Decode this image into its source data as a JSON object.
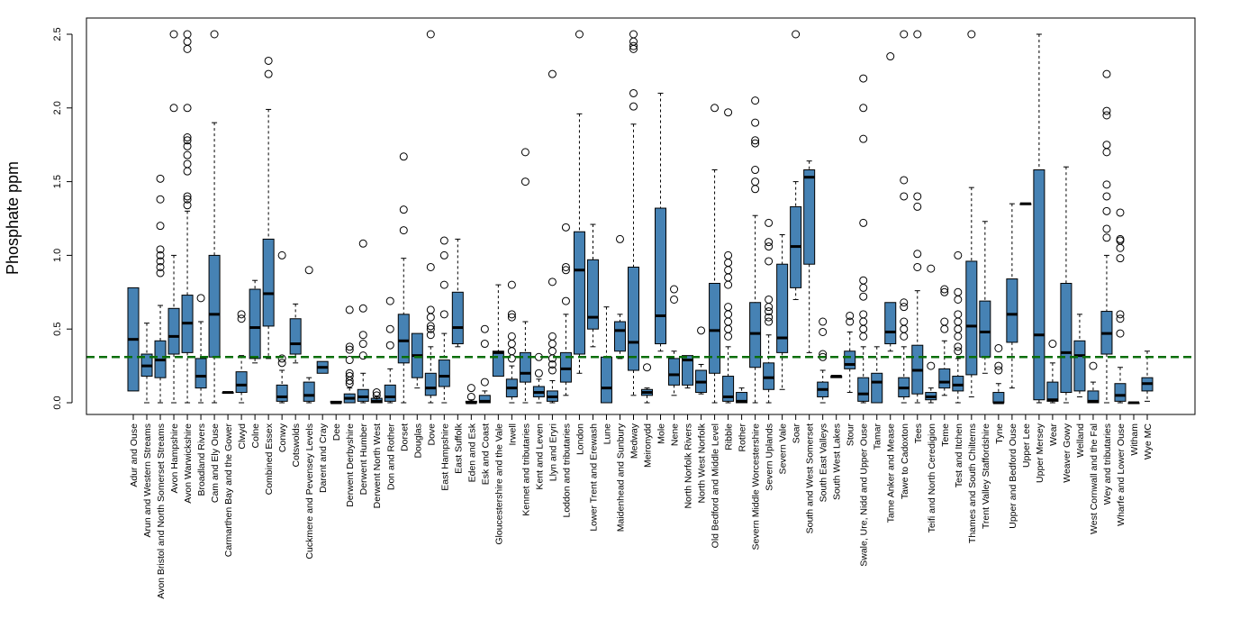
{
  "chart_data": {
    "type": "box",
    "title": "",
    "xlabel": "",
    "ylabel": "Phosphate ppm",
    "ylim": [
      -0.1,
      2.6
    ],
    "yticks": [
      0.0,
      0.5,
      1.0,
      1.5,
      2.0,
      2.5
    ],
    "ytick_labels": [
      "0.0",
      "0.5",
      "1.0",
      "1.5",
      "2.0",
      "2.5"
    ],
    "reference_line": {
      "y": 0.31,
      "color": "#0a6e0a",
      "style": "dashed"
    },
    "box_color": "#4682b4",
    "boxes": [
      {
        "label": "Adur and Ouse",
        "whislo": 0.08,
        "q1": 0.08,
        "med": 0.43,
        "q3": 0.78,
        "whishi": 0.78,
        "fliers": []
      },
      {
        "label": "Arun and Western Streams",
        "whislo": 0.0,
        "q1": 0.18,
        "med": 0.25,
        "q3": 0.33,
        "whishi": 0.54,
        "fliers": []
      },
      {
        "label": "Avon Bristol and North Somerset Streams",
        "whislo": 0.0,
        "q1": 0.17,
        "med": 0.29,
        "q3": 0.42,
        "whishi": 0.66,
        "fliers": [
          0.88,
          0.92,
          0.96,
          1.0,
          1.04,
          1.2,
          1.38,
          1.52
        ]
      },
      {
        "label": "Avon Hampshire",
        "whislo": 0.0,
        "q1": 0.33,
        "med": 0.45,
        "q3": 0.64,
        "whishi": 1.0,
        "fliers": [
          2.0,
          2.5
        ]
      },
      {
        "label": "Avon Warwickshire",
        "whislo": 0.0,
        "q1": 0.34,
        "med": 0.54,
        "q3": 0.73,
        "whishi": 1.3,
        "fliers": [
          1.34,
          1.38,
          1.4,
          1.57,
          1.62,
          1.68,
          1.74,
          1.78,
          1.8,
          2.0,
          2.4,
          2.45,
          2.5
        ]
      },
      {
        "label": "Broadland Rivers",
        "whislo": 0.0,
        "q1": 0.1,
        "med": 0.18,
        "q3": 0.3,
        "whishi": 0.55,
        "fliers": [
          0.71
        ]
      },
      {
        "label": "Cam and Ely Ouse",
        "whislo": 0.0,
        "q1": 0.31,
        "med": 0.6,
        "q3": 1.0,
        "whishi": 1.9,
        "fliers": [
          2.5
        ]
      },
      {
        "label": "Carmarthen Bay and the Gower",
        "whislo": 0.07,
        "q1": 0.07,
        "med": 0.07,
        "q3": 0.07,
        "whishi": 0.07,
        "fliers": []
      },
      {
        "label": "Clwyd",
        "whislo": 0.0,
        "q1": 0.07,
        "med": 0.12,
        "q3": 0.21,
        "whishi": 0.32,
        "fliers": [
          0.57,
          0.6
        ]
      },
      {
        "label": "Colne",
        "whislo": 0.27,
        "q1": 0.3,
        "med": 0.51,
        "q3": 0.77,
        "whishi": 0.83,
        "fliers": []
      },
      {
        "label": "Combined Essex",
        "whislo": 0.3,
        "q1": 0.52,
        "med": 0.74,
        "q3": 1.11,
        "whishi": 1.99,
        "fliers": [
          2.23,
          2.32
        ]
      },
      {
        "label": "Conwy",
        "whislo": 0.0,
        "q1": 0.01,
        "med": 0.04,
        "q3": 0.12,
        "whishi": 0.22,
        "fliers": [
          0.27,
          0.3,
          1.0
        ]
      },
      {
        "label": "Cotswolds",
        "whislo": 0.27,
        "q1": 0.33,
        "med": 0.4,
        "q3": 0.57,
        "whishi": 0.67,
        "fliers": []
      },
      {
        "label": "Cuckmere and Pevensey Levels",
        "whislo": 0.0,
        "q1": 0.01,
        "med": 0.05,
        "q3": 0.14,
        "whishi": 0.17,
        "fliers": [
          0.9
        ]
      },
      {
        "label": "Darent and Cray",
        "whislo": 0.2,
        "q1": 0.2,
        "med": 0.24,
        "q3": 0.28,
        "whishi": 0.28,
        "fliers": []
      },
      {
        "label": "Dee",
        "whislo": 0.0,
        "q1": 0.0,
        "med": 0.0,
        "q3": 0.01,
        "whishi": 0.01,
        "fliers": []
      },
      {
        "label": "Derwent Derbyshire",
        "whislo": 0.0,
        "q1": 0.0,
        "med": 0.03,
        "q3": 0.06,
        "whishi": 0.1,
        "fliers": [
          0.13,
          0.15,
          0.18,
          0.2,
          0.29,
          0.36,
          0.38,
          0.63
        ]
      },
      {
        "label": "Derwent Humber",
        "whislo": 0.0,
        "q1": 0.01,
        "med": 0.04,
        "q3": 0.09,
        "whishi": 0.2,
        "fliers": [
          0.32,
          0.4,
          0.46,
          0.64,
          1.08
        ]
      },
      {
        "label": "Derwent North West",
        "whislo": 0.0,
        "q1": 0.0,
        "med": 0.01,
        "q3": 0.03,
        "whishi": 0.04,
        "fliers": [
          0.05,
          0.07
        ]
      },
      {
        "label": "Don and Rother",
        "whislo": 0.0,
        "q1": 0.01,
        "med": 0.04,
        "q3": 0.12,
        "whishi": 0.23,
        "fliers": [
          0.39,
          0.5,
          0.69
        ]
      },
      {
        "label": "Dorset",
        "whislo": 0.0,
        "q1": 0.27,
        "med": 0.42,
        "q3": 0.6,
        "whishi": 0.98,
        "fliers": [
          1.17,
          1.31,
          1.67
        ]
      },
      {
        "label": "Douglas",
        "whislo": 0.1,
        "q1": 0.17,
        "med": 0.32,
        "q3": 0.47,
        "whishi": 0.47,
        "fliers": []
      },
      {
        "label": "Dove",
        "whislo": 0.0,
        "q1": 0.05,
        "med": 0.1,
        "q3": 0.2,
        "whishi": 0.38,
        "fliers": [
          0.46,
          0.5,
          0.52,
          0.58,
          0.63,
          0.92,
          2.5
        ]
      },
      {
        "label": "East Hampshire",
        "whislo": 0.0,
        "q1": 0.11,
        "med": 0.18,
        "q3": 0.29,
        "whishi": 0.47,
        "fliers": [
          0.6,
          0.8,
          1.0,
          1.1
        ]
      },
      {
        "label": "East Suffolk",
        "whislo": 0.38,
        "q1": 0.4,
        "med": 0.51,
        "q3": 0.75,
        "whishi": 1.11,
        "fliers": []
      },
      {
        "label": "Eden and Esk",
        "whislo": 0.0,
        "q1": 0.0,
        "med": 0.0,
        "q3": 0.01,
        "whishi": 0.02,
        "fliers": [
          0.04,
          0.1
        ]
      },
      {
        "label": "Esk and Coast",
        "whislo": 0.0,
        "q1": 0.0,
        "med": 0.01,
        "q3": 0.05,
        "whishi": 0.08,
        "fliers": [
          0.14,
          0.4,
          0.5
        ]
      },
      {
        "label": "Gloucestershire and the Vale",
        "whislo": 0.18,
        "q1": 0.18,
        "med": 0.34,
        "q3": 0.35,
        "whishi": 0.8,
        "fliers": []
      },
      {
        "label": "Irwell",
        "whislo": 0.0,
        "q1": 0.04,
        "med": 0.1,
        "q3": 0.16,
        "whishi": 0.25,
        "fliers": [
          0.3,
          0.35,
          0.4,
          0.45,
          0.58,
          0.6,
          0.8
        ]
      },
      {
        "label": "Kennet and tributaries",
        "whislo": 0.0,
        "q1": 0.14,
        "med": 0.2,
        "q3": 0.34,
        "whishi": 0.55,
        "fliers": [
          1.5,
          1.7
        ]
      },
      {
        "label": "Kent and Leven",
        "whislo": 0.0,
        "q1": 0.04,
        "med": 0.07,
        "q3": 0.11,
        "whishi": 0.16,
        "fliers": [
          0.2,
          0.31
        ]
      },
      {
        "label": "Llyn and Eryri",
        "whislo": 0.0,
        "q1": 0.01,
        "med": 0.04,
        "q3": 0.08,
        "whishi": 0.15,
        "fliers": [
          0.22,
          0.26,
          0.3,
          0.35,
          0.4,
          0.45,
          0.82,
          2.23
        ]
      },
      {
        "label": "Loddon and tributaries",
        "whislo": 0.05,
        "q1": 0.14,
        "med": 0.23,
        "q3": 0.34,
        "whishi": 0.6,
        "fliers": [
          0.69,
          0.9,
          0.92,
          1.19
        ]
      },
      {
        "label": "London",
        "whislo": 0.2,
        "q1": 0.33,
        "med": 0.9,
        "q3": 1.16,
        "whishi": 1.96,
        "fliers": [
          2.5
        ]
      },
      {
        "label": "Lower Trent and Erewash",
        "whislo": 0.38,
        "q1": 0.5,
        "med": 0.58,
        "q3": 0.97,
        "whishi": 1.21,
        "fliers": []
      },
      {
        "label": "Lune",
        "whislo": 0.0,
        "q1": 0.0,
        "med": 0.1,
        "q3": 0.31,
        "whishi": 0.65,
        "fliers": []
      },
      {
        "label": "Maidenhead and Sunbury",
        "whislo": 0.3,
        "q1": 0.35,
        "med": 0.49,
        "q3": 0.55,
        "whishi": 0.6,
        "fliers": [
          1.11
        ]
      },
      {
        "label": "Medway",
        "whislo": 0.05,
        "q1": 0.22,
        "med": 0.41,
        "q3": 0.92,
        "whishi": 1.89,
        "fliers": [
          2.01,
          2.1,
          2.4,
          2.42,
          2.45,
          2.5
        ]
      },
      {
        "label": "Meironydd",
        "whislo": 0.0,
        "q1": 0.05,
        "med": 0.07,
        "q3": 0.09,
        "whishi": 0.1,
        "fliers": [
          0.24
        ]
      },
      {
        "label": "Mole",
        "whislo": 0.35,
        "q1": 0.4,
        "med": 0.59,
        "q3": 1.32,
        "whishi": 2.1,
        "fliers": []
      },
      {
        "label": "Nene",
        "whislo": 0.05,
        "q1": 0.12,
        "med": 0.19,
        "q3": 0.3,
        "whishi": 0.35,
        "fliers": [
          0.7,
          0.77
        ]
      },
      {
        "label": "North Norfolk Rivers",
        "whislo": 0.1,
        "q1": 0.12,
        "med": 0.29,
        "q3": 0.32,
        "whishi": 0.32,
        "fliers": []
      },
      {
        "label": "North West Norfolk",
        "whislo": 0.06,
        "q1": 0.07,
        "med": 0.14,
        "q3": 0.22,
        "whishi": 0.26,
        "fliers": [
          0.49
        ]
      },
      {
        "label": "Old Bedford and Middle Level",
        "whislo": 0.0,
        "q1": 0.2,
        "med": 0.49,
        "q3": 0.81,
        "whishi": 1.58,
        "fliers": [
          2.0
        ]
      },
      {
        "label": "Ribble",
        "whislo": 0.0,
        "q1": 0.01,
        "med": 0.04,
        "q3": 0.18,
        "whishi": 0.38,
        "fliers": [
          0.45,
          0.5,
          0.55,
          0.6,
          0.65,
          0.8,
          0.85,
          0.9,
          0.95,
          1.0,
          1.97
        ]
      },
      {
        "label": "Rother",
        "whislo": 0.0,
        "q1": 0.0,
        "med": 0.01,
        "q3": 0.07,
        "whishi": 0.1,
        "fliers": []
      },
      {
        "label": "Severn Middle Worcestershire",
        "whislo": 0.0,
        "q1": 0.24,
        "med": 0.47,
        "q3": 0.68,
        "whishi": 1.27,
        "fliers": [
          1.45,
          1.5,
          1.58,
          1.76,
          1.78,
          1.9,
          2.05
        ]
      },
      {
        "label": "Severn Uplands",
        "whislo": 0.0,
        "q1": 0.09,
        "med": 0.17,
        "q3": 0.27,
        "whishi": 0.46,
        "fliers": [
          0.55,
          0.58,
          0.62,
          0.65,
          0.7,
          0.96,
          1.06,
          1.09,
          1.22
        ]
      },
      {
        "label": "Severn Vale",
        "whislo": 0.09,
        "q1": 0.34,
        "med": 0.44,
        "q3": 0.94,
        "whishi": 1.14,
        "fliers": []
      },
      {
        "label": "Soar",
        "whislo": 0.7,
        "q1": 0.78,
        "med": 1.06,
        "q3": 1.33,
        "whishi": 1.5,
        "fliers": [
          2.5
        ]
      },
      {
        "label": "South and West Somerset",
        "whislo": 0.34,
        "q1": 0.94,
        "med": 1.53,
        "q3": 1.58,
        "whishi": 1.64,
        "fliers": []
      },
      {
        "label": "South East Valleys",
        "whislo": 0.0,
        "q1": 0.04,
        "med": 0.09,
        "q3": 0.14,
        "whishi": 0.22,
        "fliers": [
          0.31,
          0.33,
          0.48,
          0.55
        ]
      },
      {
        "label": "South West Lakes",
        "whislo": 0.17,
        "q1": 0.17,
        "med": 0.18,
        "q3": 0.18,
        "whishi": 0.18,
        "fliers": []
      },
      {
        "label": "Stour",
        "whislo": 0.07,
        "q1": 0.23,
        "med": 0.26,
        "q3": 0.35,
        "whishi": 0.48,
        "fliers": [
          0.55,
          0.59
        ]
      },
      {
        "label": "Swale, Ure, Nidd and Upper Ouse",
        "whislo": 0.0,
        "q1": 0.01,
        "med": 0.06,
        "q3": 0.17,
        "whishi": 0.38,
        "fliers": [
          0.45,
          0.5,
          0.55,
          0.6,
          0.72,
          0.78,
          0.83,
          1.22,
          1.79,
          2.0,
          2.2
        ]
      },
      {
        "label": "Tamar",
        "whislo": 0.0,
        "q1": 0.0,
        "med": 0.14,
        "q3": 0.2,
        "whishi": 0.38,
        "fliers": []
      },
      {
        "label": "Tame Anker and Mease",
        "whislo": 0.35,
        "q1": 0.4,
        "med": 0.48,
        "q3": 0.68,
        "whishi": 0.68,
        "fliers": [
          2.35
        ]
      },
      {
        "label": "Tawe to Cadoxton",
        "whislo": 0.0,
        "q1": 0.04,
        "med": 0.1,
        "q3": 0.17,
        "whishi": 0.38,
        "fliers": [
          0.45,
          0.5,
          0.55,
          0.65,
          0.68,
          1.4,
          1.51,
          2.5
        ]
      },
      {
        "label": "Tees",
        "whislo": 0.0,
        "q1": 0.06,
        "med": 0.22,
        "q3": 0.39,
        "whishi": 0.76,
        "fliers": [
          0.92,
          1.01,
          1.33,
          1.4,
          2.5
        ]
      },
      {
        "label": "Teifi and North Ceredigion",
        "whislo": 0.0,
        "q1": 0.02,
        "med": 0.04,
        "q3": 0.07,
        "whishi": 0.1,
        "fliers": [
          0.25,
          0.91
        ]
      },
      {
        "label": "Teme",
        "whislo": 0.05,
        "q1": 0.1,
        "med": 0.14,
        "q3": 0.23,
        "whishi": 0.42,
        "fliers": [
          0.5,
          0.55,
          0.75,
          0.77
        ]
      },
      {
        "label": "Test and Itchen",
        "whislo": 0.0,
        "q1": 0.08,
        "med": 0.12,
        "q3": 0.18,
        "whishi": 0.3,
        "fliers": [
          0.35,
          0.38,
          0.45,
          0.5,
          0.55,
          0.6,
          0.7,
          0.75,
          1.0
        ]
      },
      {
        "label": "Thames and South Chilterns",
        "whislo": 0.04,
        "q1": 0.19,
        "med": 0.52,
        "q3": 0.96,
        "whishi": 1.46,
        "fliers": [
          2.5
        ]
      },
      {
        "label": "Trent Valley Staffordshire",
        "whislo": 0.2,
        "q1": 0.31,
        "med": 0.48,
        "q3": 0.69,
        "whishi": 1.23,
        "fliers": []
      },
      {
        "label": "Tyne",
        "whislo": 0.0,
        "q1": 0.0,
        "med": 0.0,
        "q3": 0.07,
        "whishi": 0.13,
        "fliers": [
          0.22,
          0.25,
          0.37
        ]
      },
      {
        "label": "Upper and Bedford Ouse",
        "whislo": 0.1,
        "q1": 0.41,
        "med": 0.6,
        "q3": 0.84,
        "whishi": 1.35,
        "fliers": []
      },
      {
        "label": "Upper Lee",
        "whislo": 1.35,
        "q1": 1.35,
        "med": 1.35,
        "q3": 1.35,
        "whishi": 1.35,
        "fliers": []
      },
      {
        "label": "Upper Mersey",
        "whislo": 0.0,
        "q1": 0.02,
        "med": 0.46,
        "q3": 1.58,
        "whishi": 2.5,
        "fliers": []
      },
      {
        "label": "Wear",
        "whislo": 0.0,
        "q1": 0.01,
        "med": 0.02,
        "q3": 0.14,
        "whishi": 0.27,
        "fliers": [
          0.4
        ]
      },
      {
        "label": "Weaver Gowy",
        "whislo": 0.0,
        "q1": 0.07,
        "med": 0.34,
        "q3": 0.81,
        "whishi": 1.6,
        "fliers": []
      },
      {
        "label": "Welland",
        "whislo": 0.04,
        "q1": 0.08,
        "med": 0.32,
        "q3": 0.42,
        "whishi": 0.6,
        "fliers": []
      },
      {
        "label": "West Cornwall and the Fal",
        "whislo": 0.0,
        "q1": 0.0,
        "med": 0.01,
        "q3": 0.08,
        "whishi": 0.14,
        "fliers": [
          0.25
        ]
      },
      {
        "label": "Wey and tributaries",
        "whislo": 0.0,
        "q1": 0.33,
        "med": 0.47,
        "q3": 0.62,
        "whishi": 1.0,
        "fliers": [
          1.12,
          1.18,
          1.3,
          1.4,
          1.48,
          1.7,
          1.75,
          1.95,
          1.98,
          2.23
        ]
      },
      {
        "label": "Wharfe and Lower Ouse",
        "whislo": 0.0,
        "q1": 0.01,
        "med": 0.05,
        "q3": 0.13,
        "whishi": 0.24,
        "fliers": [
          0.47,
          0.57,
          0.6,
          0.98,
          1.05,
          1.1,
          1.11,
          1.29
        ]
      },
      {
        "label": "Witham",
        "whislo": 0.0,
        "q1": 0.0,
        "med": 0.0,
        "q3": 0.0,
        "whishi": 0.0,
        "fliers": []
      },
      {
        "label": "Wye MC",
        "whislo": 0.01,
        "q1": 0.08,
        "med": 0.13,
        "q3": 0.17,
        "whishi": 0.35,
        "fliers": []
      }
    ]
  }
}
